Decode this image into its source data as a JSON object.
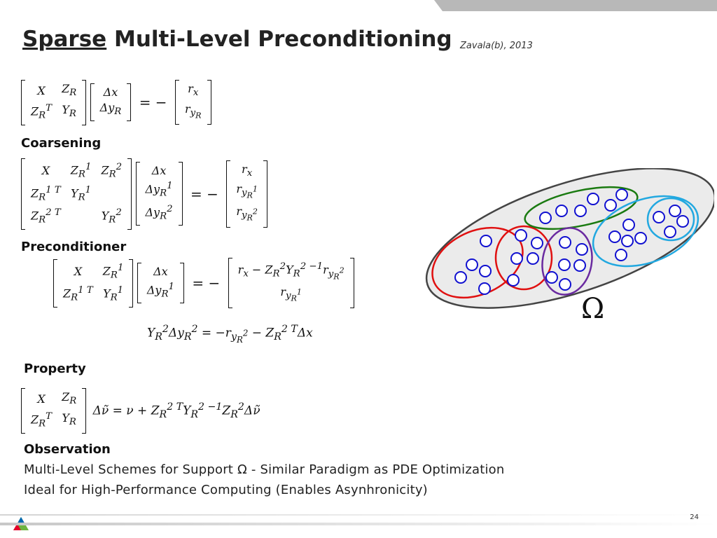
{
  "slide": {
    "title_underlined": "Sparse",
    "title_rest": "Multi-Level Preconditioning",
    "citation": "Zavala(b), 2013",
    "page_number": "24"
  },
  "sections": {
    "coarsening": "Coarsening",
    "preconditioner": "Preconditioner",
    "property": "Property",
    "observation": "Observation"
  },
  "equations": {
    "eq1_lhs": [
      [
        "X",
        "Z_R"
      ],
      [
        "Z_Rᵀ",
        "Y_R"
      ]
    ],
    "eq1_vec": [
      "Δx",
      "Δy_R"
    ],
    "eq1_rhs": [
      "r_x",
      "r_yR"
    ],
    "schur": "Y²_R Δy²_R = −r_y²R − Z²_Rᵀ Δx",
    "property_rhs": "Δν̃ = ν + Z²_Rᵀ Y²_R⁻¹ Z²_R Δν̃"
  },
  "observation": {
    "line1": "Multi-Level Schemes for Support Ω - Similar Paradigm as PDE Optimization",
    "line2": "Ideal for High-Performance Computing (Enables Asynhronicity)"
  },
  "diagram": {
    "omega_label": "Ω",
    "colors": {
      "outer_fill": "#ebebeb",
      "outer_stroke": "#444444",
      "red": "#e01010",
      "green": "#1a7a10",
      "purple": "#6a2aa0",
      "cyan": "#22a8e0",
      "node": "#1010d0"
    }
  }
}
